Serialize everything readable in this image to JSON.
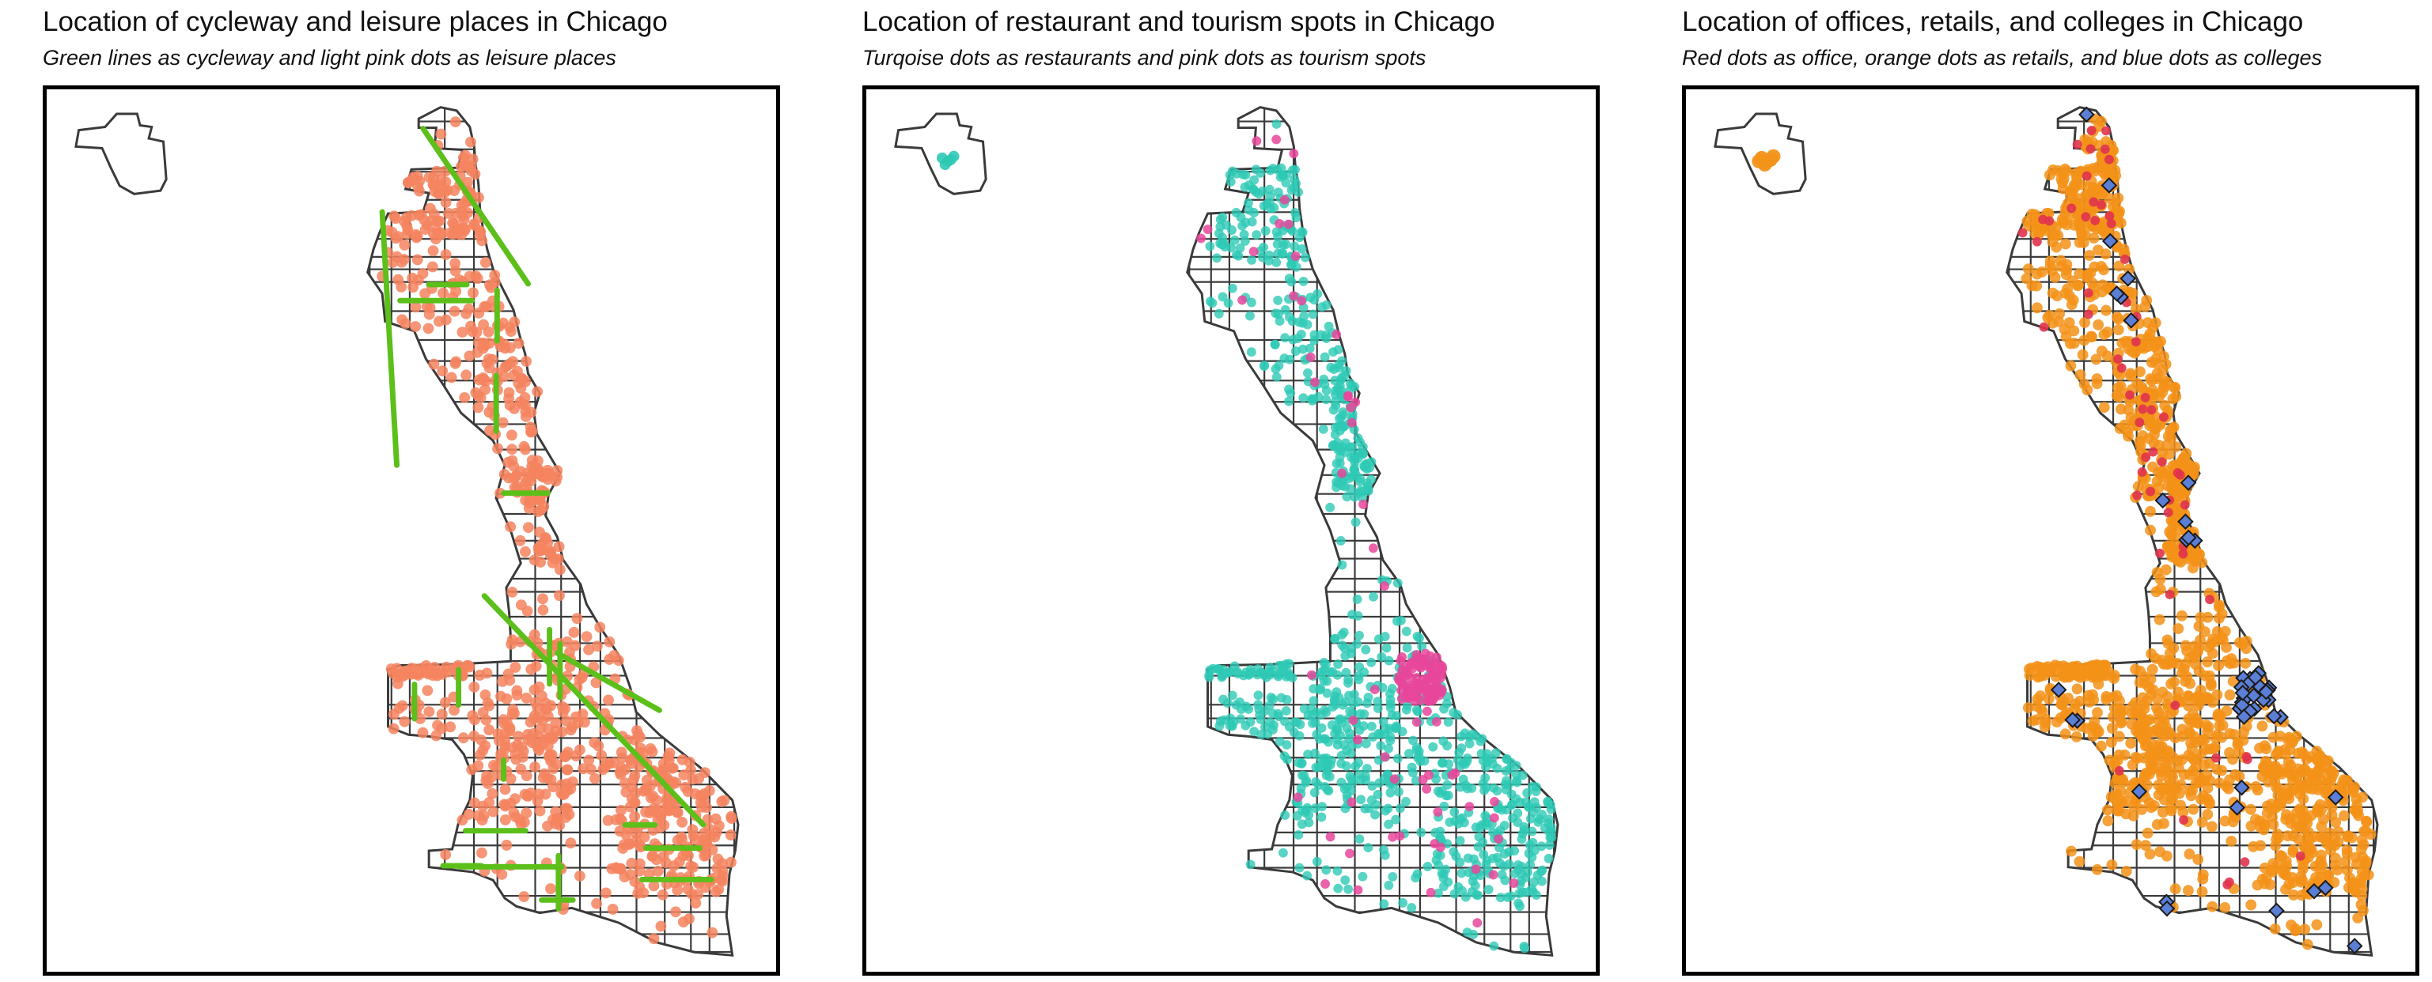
{
  "panels": [
    {
      "title": "Location of cycleway and leisure places in Chicago",
      "subtitle": "Green lines as cycleway and light pink dots as leisure places",
      "layers": [
        "cycleway",
        "leisure"
      ]
    },
    {
      "title": "Location of restaurant and tourism spots in Chicago",
      "subtitle": "Turqoise dots as restaurants and pink dots as tourism spots",
      "layers": [
        "restaurant",
        "tourism"
      ]
    },
    {
      "title": "Location of offices, retails, and colleges in Chicago",
      "subtitle": "Red dots as office, orange dots as retails, and blue dots as colleges",
      "layers": [
        "office",
        "retail",
        "college"
      ]
    }
  ],
  "colors": {
    "boundary": "#3a3a3a",
    "frame": "#000000",
    "cycleway": "#5cbf1a",
    "leisure": "#f4845f",
    "restaurant": "#2ec9b5",
    "tourism": "#e8479b",
    "office": "#e0334d",
    "retail": "#f39219",
    "college": "#5b7fd6"
  }
}
